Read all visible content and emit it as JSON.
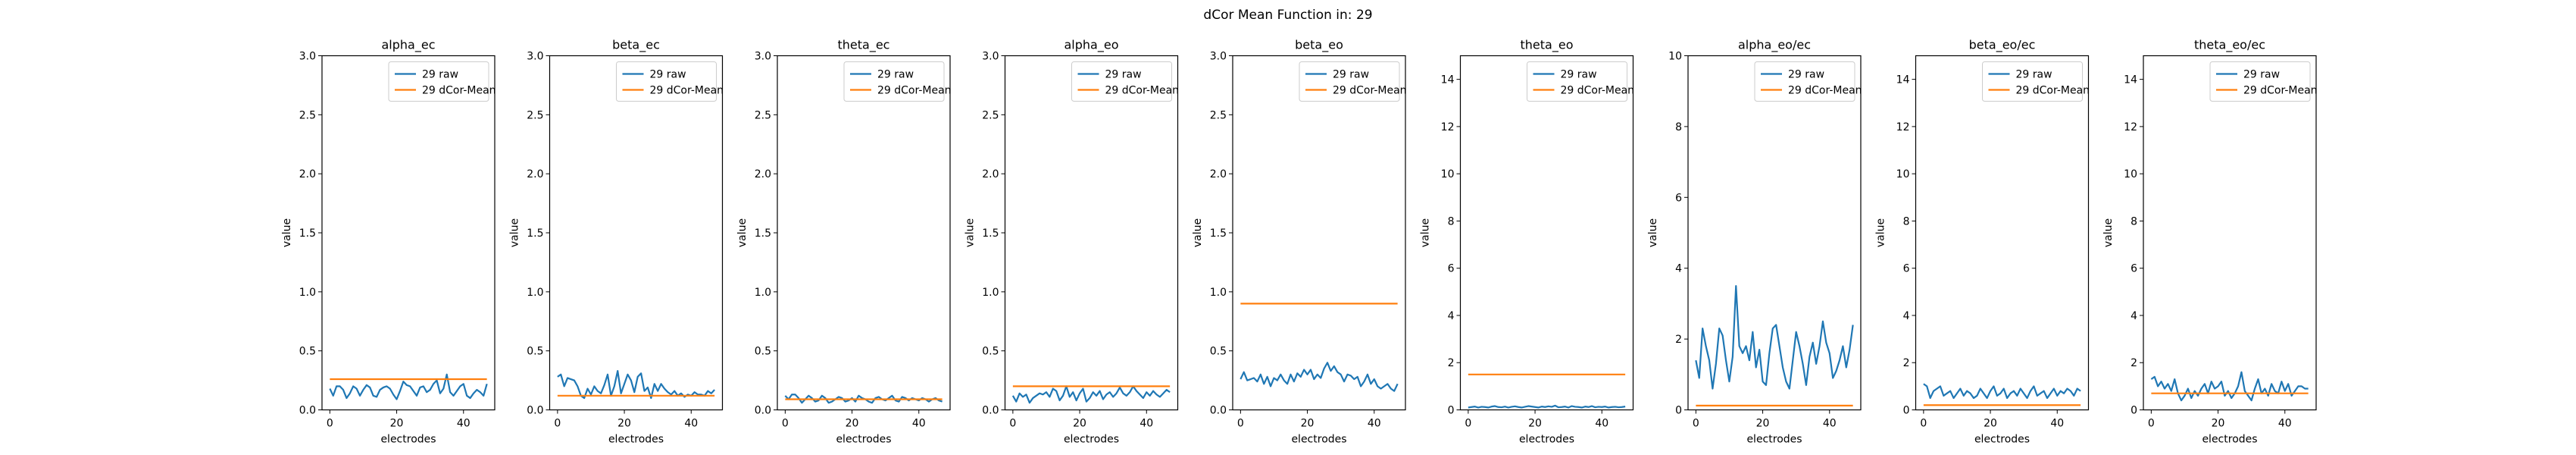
{
  "suptitle": "dCor Mean Function in: 29",
  "colors": {
    "raw": "#1f77b4",
    "mean": "#ff7f0e",
    "axes": "#000000",
    "background": "#ffffff"
  },
  "chart_data": [
    {
      "type": "line",
      "title": "alpha_ec",
      "xlabel": "electrodes",
      "ylabel": "value",
      "ylim": [
        0,
        3
      ],
      "yticks": [
        0.0,
        0.5,
        1.0,
        1.5,
        2.0,
        2.5,
        3.0
      ],
      "xticks": [
        0,
        20,
        40
      ],
      "xlim": [
        -2.35,
        49.35
      ],
      "legend_loc": "upper right",
      "series": [
        {
          "name": "29 raw",
          "values": [
            0.18,
            0.12,
            0.2,
            0.2,
            0.17,
            0.1,
            0.14,
            0.2,
            0.18,
            0.12,
            0.17,
            0.21,
            0.19,
            0.12,
            0.11,
            0.17,
            0.19,
            0.2,
            0.18,
            0.13,
            0.09,
            0.16,
            0.24,
            0.21,
            0.2,
            0.16,
            0.12,
            0.19,
            0.2,
            0.15,
            0.17,
            0.22,
            0.25,
            0.14,
            0.18,
            0.3,
            0.15,
            0.12,
            0.16,
            0.2,
            0.22,
            0.12,
            0.1,
            0.14,
            0.17,
            0.15,
            0.12,
            0.22
          ]
        },
        {
          "name": "29 dCor-Mean",
          "values": [
            0.26,
            0.26
          ]
        }
      ]
    },
    {
      "type": "line",
      "title": "beta_ec",
      "xlabel": "electrodes",
      "ylabel": "value",
      "ylim": [
        0,
        3
      ],
      "yticks": [
        0.0,
        0.5,
        1.0,
        1.5,
        2.0,
        2.5,
        3.0
      ],
      "xticks": [
        0,
        20,
        40
      ],
      "xlim": [
        -2.35,
        49.35
      ],
      "legend_loc": "upper right",
      "series": [
        {
          "name": "29 raw",
          "values": [
            0.28,
            0.3,
            0.2,
            0.27,
            0.26,
            0.25,
            0.2,
            0.12,
            0.1,
            0.18,
            0.13,
            0.2,
            0.16,
            0.14,
            0.21,
            0.3,
            0.12,
            0.2,
            0.33,
            0.14,
            0.22,
            0.3,
            0.25,
            0.15,
            0.28,
            0.31,
            0.16,
            0.19,
            0.1,
            0.22,
            0.16,
            0.22,
            0.18,
            0.15,
            0.13,
            0.16,
            0.12,
            0.14,
            0.11,
            0.13,
            0.12,
            0.15,
            0.13,
            0.13,
            0.12,
            0.16,
            0.14,
            0.17
          ]
        },
        {
          "name": "29 dCor-Mean",
          "values": [
            0.12,
            0.12
          ]
        }
      ]
    },
    {
      "type": "line",
      "title": "theta_ec",
      "xlabel": "electrodes",
      "ylabel": "value",
      "ylim": [
        0,
        3
      ],
      "yticks": [
        0.0,
        0.5,
        1.0,
        1.5,
        2.0,
        2.5,
        3.0
      ],
      "xticks": [
        0,
        20,
        40
      ],
      "xlim": [
        -2.35,
        49.35
      ],
      "legend_loc": "upper right",
      "series": [
        {
          "name": "29 raw",
          "values": [
            0.12,
            0.09,
            0.13,
            0.13,
            0.1,
            0.06,
            0.09,
            0.12,
            0.1,
            0.07,
            0.08,
            0.12,
            0.1,
            0.06,
            0.07,
            0.09,
            0.11,
            0.1,
            0.07,
            0.08,
            0.1,
            0.07,
            0.12,
            0.1,
            0.09,
            0.07,
            0.06,
            0.1,
            0.11,
            0.09,
            0.08,
            0.1,
            0.12,
            0.08,
            0.07,
            0.11,
            0.1,
            0.08,
            0.1,
            0.09,
            0.08,
            0.1,
            0.09,
            0.07,
            0.09,
            0.1,
            0.08,
            0.07
          ]
        },
        {
          "name": "29 dCor-Mean",
          "values": [
            0.09,
            0.09
          ]
        }
      ]
    },
    {
      "type": "line",
      "title": "alpha_eo",
      "xlabel": "electrodes",
      "ylabel": "value",
      "ylim": [
        0,
        3
      ],
      "yticks": [
        0.0,
        0.5,
        1.0,
        1.5,
        2.0,
        2.5,
        3.0
      ],
      "xticks": [
        0,
        20,
        40
      ],
      "xlim": [
        -2.35,
        49.35
      ],
      "legend_loc": "upper right",
      "series": [
        {
          "name": "29 raw",
          "values": [
            0.12,
            0.07,
            0.14,
            0.11,
            0.13,
            0.06,
            0.1,
            0.12,
            0.14,
            0.13,
            0.15,
            0.11,
            0.18,
            0.16,
            0.08,
            0.12,
            0.2,
            0.11,
            0.15,
            0.08,
            0.14,
            0.18,
            0.07,
            0.1,
            0.15,
            0.12,
            0.16,
            0.09,
            0.13,
            0.15,
            0.11,
            0.14,
            0.19,
            0.14,
            0.12,
            0.15,
            0.2,
            0.16,
            0.13,
            0.1,
            0.15,
            0.12,
            0.16,
            0.13,
            0.11,
            0.14,
            0.17,
            0.15
          ]
        },
        {
          "name": "29 dCor-Mean",
          "values": [
            0.2,
            0.2
          ]
        }
      ]
    },
    {
      "type": "line",
      "title": "beta_eo",
      "xlabel": "electrodes",
      "ylabel": "value",
      "ylim": [
        0,
        3
      ],
      "yticks": [
        0.0,
        0.5,
        1.0,
        1.5,
        2.0,
        2.5,
        3.0
      ],
      "xticks": [
        0,
        20,
        40
      ],
      "xlim": [
        -2.35,
        49.35
      ],
      "legend_loc": "upper right",
      "series": [
        {
          "name": "29 raw",
          "values": [
            0.26,
            0.32,
            0.25,
            0.26,
            0.27,
            0.24,
            0.3,
            0.22,
            0.28,
            0.2,
            0.27,
            0.25,
            0.3,
            0.25,
            0.22,
            0.3,
            0.24,
            0.31,
            0.28,
            0.34,
            0.3,
            0.34,
            0.26,
            0.3,
            0.27,
            0.35,
            0.4,
            0.33,
            0.37,
            0.32,
            0.3,
            0.24,
            0.3,
            0.29,
            0.26,
            0.28,
            0.2,
            0.24,
            0.3,
            0.22,
            0.26,
            0.2,
            0.18,
            0.2,
            0.22,
            0.18,
            0.16,
            0.22
          ]
        },
        {
          "name": "29 dCor-Mean",
          "values": [
            0.9,
            0.9
          ]
        }
      ]
    },
    {
      "type": "line",
      "title": "theta_eo",
      "xlabel": "electrodes",
      "ylabel": "value",
      "ylim": [
        0,
        15
      ],
      "yticks": [
        0,
        2,
        4,
        6,
        8,
        10,
        12,
        14
      ],
      "xticks": [
        0,
        20,
        40
      ],
      "xlim": [
        -2.35,
        49.35
      ],
      "legend_loc": "upper right",
      "series": [
        {
          "name": "29 raw",
          "values": [
            0.1,
            0.12,
            0.14,
            0.1,
            0.13,
            0.12,
            0.1,
            0.14,
            0.16,
            0.12,
            0.11,
            0.14,
            0.1,
            0.13,
            0.15,
            0.12,
            0.1,
            0.13,
            0.16,
            0.14,
            0.12,
            0.1,
            0.14,
            0.12,
            0.15,
            0.13,
            0.18,
            0.11,
            0.12,
            0.14,
            0.1,
            0.16,
            0.13,
            0.12,
            0.1,
            0.14,
            0.12,
            0.16,
            0.11,
            0.13,
            0.12,
            0.14,
            0.1,
            0.12,
            0.13,
            0.11,
            0.12,
            0.14
          ]
        },
        {
          "name": "29 dCor-Mean",
          "values": [
            1.5,
            1.5
          ]
        }
      ]
    },
    {
      "type": "line",
      "title": "alpha_eo/ec",
      "xlabel": "electrodes",
      "ylabel": "value",
      "ylim": [
        0,
        10
      ],
      "yticks": [
        0,
        2,
        4,
        6,
        8,
        10
      ],
      "xticks": [
        0,
        20,
        40
      ],
      "xlim": [
        -2.35,
        49.35
      ],
      "legend_loc": "upper right",
      "series": [
        {
          "name": "29 raw",
          "values": [
            1.4,
            0.9,
            2.3,
            1.8,
            1.4,
            0.6,
            1.3,
            2.3,
            2.1,
            1.4,
            0.8,
            1.5,
            3.5,
            1.8,
            1.6,
            1.8,
            1.4,
            2.2,
            1.2,
            1.7,
            0.8,
            0.7,
            1.6,
            2.3,
            2.4,
            1.8,
            1.2,
            0.8,
            0.6,
            1.4,
            2.2,
            1.8,
            1.3,
            0.7,
            1.5,
            1.9,
            1.3,
            1.8,
            2.5,
            1.9,
            1.6,
            0.9,
            1.1,
            1.4,
            1.8,
            1.2,
            1.7,
            2.4
          ]
        },
        {
          "name": "29 dCor-Mean",
          "values": [
            0.12,
            0.12
          ]
        }
      ]
    },
    {
      "type": "line",
      "title": "beta_eo/ec",
      "xlabel": "electrodes",
      "ylabel": "value",
      "ylim": [
        0,
        15
      ],
      "yticks": [
        0,
        2,
        4,
        6,
        8,
        10,
        12,
        14
      ],
      "xticks": [
        0,
        20,
        40
      ],
      "xlim": [
        -2.35,
        49.35
      ],
      "legend_loc": "upper right",
      "series": [
        {
          "name": "29 raw",
          "values": [
            1.1,
            1.0,
            0.5,
            0.8,
            0.9,
            1.0,
            0.6,
            0.7,
            0.8,
            0.5,
            0.7,
            0.9,
            0.6,
            0.8,
            0.7,
            0.5,
            0.6,
            0.9,
            0.7,
            0.5,
            0.8,
            1.0,
            0.6,
            0.7,
            0.9,
            0.5,
            0.7,
            0.8,
            0.6,
            0.9,
            0.7,
            0.5,
            0.8,
            1.0,
            0.6,
            0.7,
            0.8,
            0.5,
            0.7,
            0.9,
            0.6,
            0.8,
            0.7,
            0.9,
            0.8,
            0.6,
            0.9,
            0.8
          ]
        },
        {
          "name": "29 dCor-Mean",
          "values": [
            0.2,
            0.2
          ]
        }
      ]
    },
    {
      "type": "line",
      "title": "theta_eo/ec",
      "xlabel": "electrodes",
      "ylabel": "value",
      "ylim": [
        0,
        15
      ],
      "yticks": [
        0,
        2,
        4,
        6,
        8,
        10,
        12,
        14
      ],
      "xticks": [
        0,
        20,
        40
      ],
      "xlim": [
        -2.35,
        49.35
      ],
      "legend_loc": "upper right",
      "series": [
        {
          "name": "29 raw",
          "values": [
            1.3,
            1.4,
            1.0,
            1.2,
            0.9,
            1.1,
            0.8,
            1.3,
            0.7,
            0.4,
            0.6,
            0.9,
            0.5,
            0.8,
            0.6,
            0.9,
            1.1,
            0.7,
            1.2,
            0.9,
            1.0,
            1.2,
            0.6,
            0.8,
            0.5,
            0.7,
            1.0,
            1.6,
            0.8,
            0.6,
            0.4,
            0.9,
            1.3,
            0.7,
            0.9,
            0.6,
            1.1,
            0.8,
            0.7,
            1.2,
            0.8,
            1.1,
            0.6,
            0.8,
            1.0,
            1.0,
            0.9,
            0.9
          ]
        },
        {
          "name": "29 dCor-Mean",
          "values": [
            0.7,
            0.7
          ]
        }
      ]
    }
  ]
}
